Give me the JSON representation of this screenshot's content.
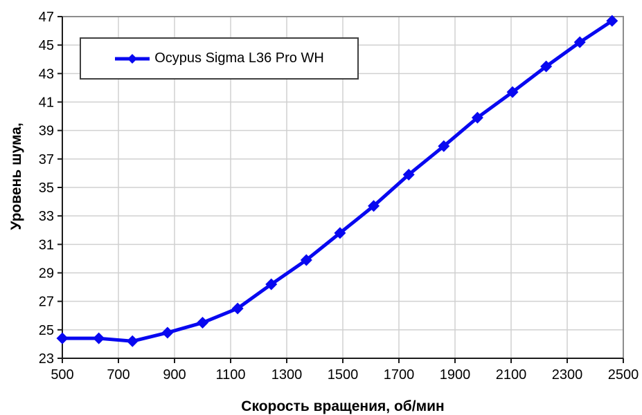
{
  "chart_data": {
    "type": "line",
    "title": "",
    "xlabel": "Скорость вращения, об/мин",
    "ylabel": "Уровень шума,",
    "xlim": [
      500,
      2500
    ],
    "ylim": [
      23,
      47
    ],
    "x_ticks": [
      500,
      700,
      900,
      1100,
      1300,
      1500,
      1700,
      1900,
      2100,
      2300,
      2500
    ],
    "y_ticks": [
      23,
      25,
      27,
      29,
      31,
      33,
      35,
      37,
      39,
      41,
      43,
      45,
      47
    ],
    "grid": true,
    "legend": {
      "position": "top-left-inside",
      "entries": [
        "Ocypus Sigma L36 Pro WH"
      ]
    },
    "series": [
      {
        "name": "Ocypus Sigma L36 Pro WH",
        "marker": "diamond",
        "color": "#0808f0",
        "x": [
          500,
          630,
          750,
          875,
          1000,
          1125,
          1245,
          1370,
          1490,
          1610,
          1735,
          1860,
          1980,
          2105,
          2225,
          2345,
          2460
        ],
        "y": [
          24.4,
          24.4,
          24.2,
          24.8,
          25.5,
          26.5,
          28.2,
          29.9,
          31.8,
          33.7,
          35.9,
          37.9,
          39.9,
          41.7,
          43.5,
          45.2,
          46.7
        ]
      }
    ],
    "colors": {
      "grid": "#d0d0d0",
      "axis": "#1a1a1a",
      "plot_border": "#8c8c8c",
      "text": "#000000",
      "background": "#ffffff"
    }
  }
}
